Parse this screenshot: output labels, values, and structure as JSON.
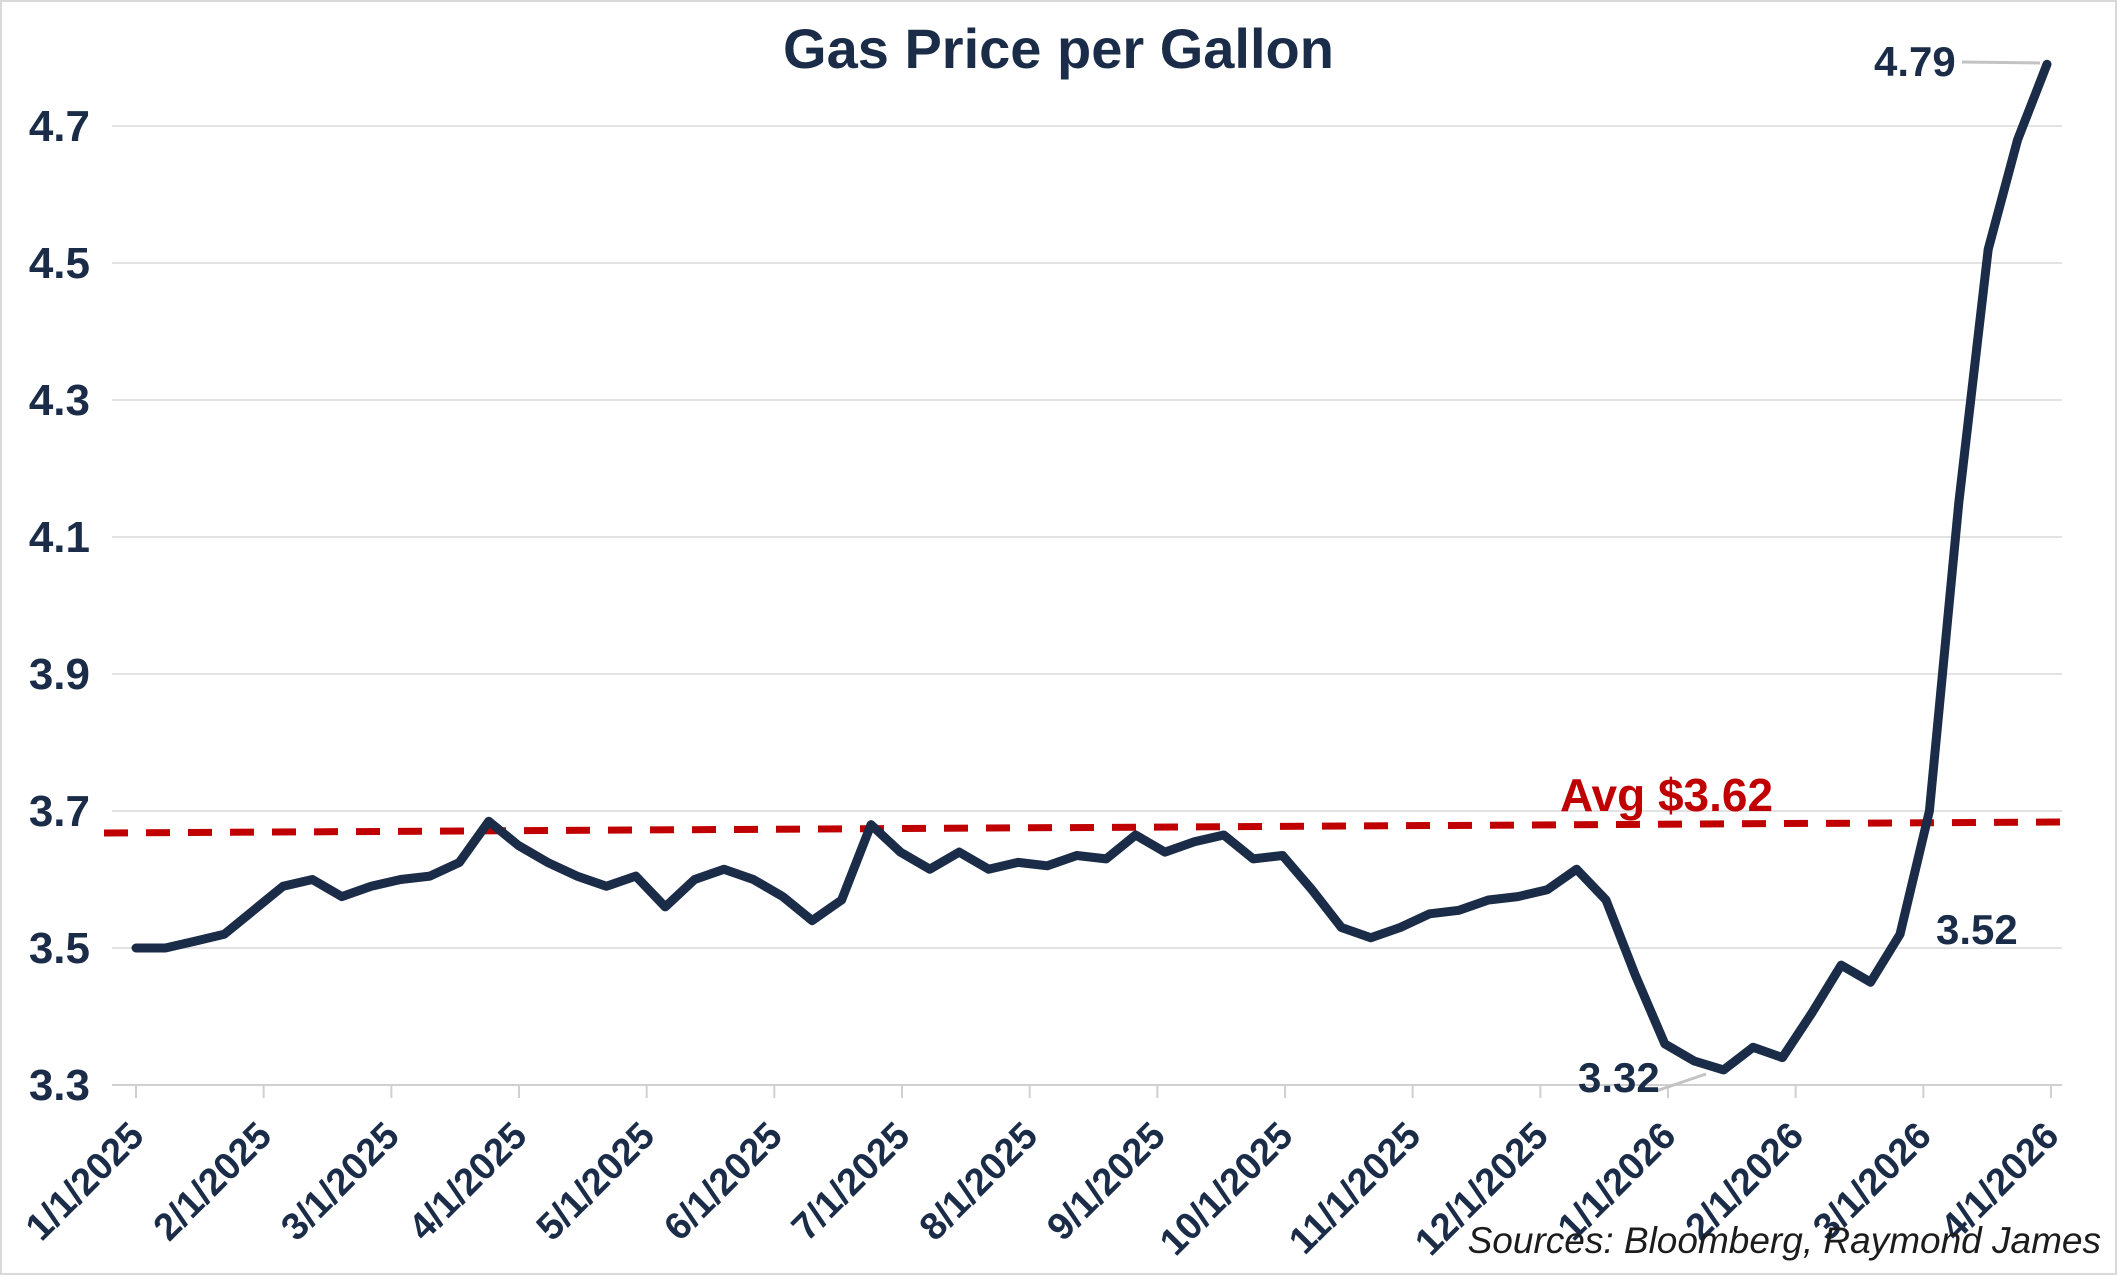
{
  "title": "Gas Price per Gallon",
  "source_note": "Sources: Bloomberg, Raymond James",
  "annotations": {
    "max_value": "4.79",
    "latest_value": "3.52",
    "min_value": "3.32",
    "avg_label": "Avg $3.62"
  },
  "colors": {
    "line": "#1a2c48",
    "navy_text": "#1a2c48",
    "avg_line_red": "#c00000",
    "gridline": "#e2e2e2",
    "axis": "#d0d0d0",
    "leader": "#c3c3c3",
    "source_text": "#1c1c1c"
  },
  "chart_data": {
    "type": "line",
    "title": "Gas Price per Gallon",
    "xlabel": "",
    "ylabel": "",
    "ylim": [
      3.3,
      4.8
    ],
    "yticks": [
      3.3,
      3.5,
      3.7,
      3.9,
      4.1,
      4.3,
      4.5,
      4.7
    ],
    "grid": "horizontal",
    "legend": "none",
    "xtick_labels": [
      "1/1/2025",
      "2/1/2025",
      "3/1/2025",
      "4/1/2025",
      "5/1/2025",
      "6/1/2025",
      "7/1/2025",
      "8/1/2025",
      "9/1/2025",
      "10/1/2025",
      "11/1/2025",
      "12/1/2025",
      "1/1/2026",
      "2/1/2026",
      "3/1/2026",
      "4/1/2026"
    ],
    "x": [
      "1/1/2025",
      "1/8/2025",
      "1/15/2025",
      "1/22/2025",
      "1/29/2025",
      "2/5/2025",
      "2/12/2025",
      "2/19/2025",
      "2/26/2025",
      "3/5/2025",
      "3/12/2025",
      "3/19/2025",
      "3/26/2025",
      "4/2/2025",
      "4/9/2025",
      "4/16/2025",
      "4/23/2025",
      "4/30/2025",
      "5/7/2025",
      "5/14/2025",
      "5/21/2025",
      "5/28/2025",
      "6/4/2025",
      "6/11/2025",
      "6/18/2025",
      "6/25/2025",
      "7/2/2025",
      "7/9/2025",
      "7/16/2025",
      "7/23/2025",
      "7/30/2025",
      "8/6/2025",
      "8/13/2025",
      "8/20/2025",
      "8/27/2025",
      "9/3/2025",
      "9/10/2025",
      "9/17/2025",
      "9/24/2025",
      "10/1/2025",
      "10/8/2025",
      "10/15/2025",
      "10/22/2025",
      "10/29/2025",
      "11/5/2025",
      "11/12/2025",
      "11/19/2025",
      "11/26/2025",
      "12/3/2025",
      "12/10/2025",
      "12/17/2025",
      "12/24/2025",
      "12/31/2025",
      "1/7/2026",
      "1/14/2026",
      "1/21/2026",
      "1/28/2026",
      "2/4/2026",
      "2/11/2026",
      "2/18/2026",
      "2/25/2026",
      "3/4/2026",
      "3/11/2026",
      "3/18/2026",
      "3/25/2026",
      "4/1/2026"
    ],
    "values": [
      3.5,
      3.5,
      3.51,
      3.52,
      3.555,
      3.59,
      3.6,
      3.575,
      3.59,
      3.6,
      3.605,
      3.625,
      3.685,
      3.65,
      3.625,
      3.605,
      3.59,
      3.605,
      3.56,
      3.6,
      3.615,
      3.6,
      3.575,
      3.54,
      3.57,
      3.68,
      3.64,
      3.615,
      3.64,
      3.615,
      3.625,
      3.62,
      3.635,
      3.63,
      3.665,
      3.64,
      3.655,
      3.665,
      3.63,
      3.635,
      3.585,
      3.53,
      3.515,
      3.53,
      3.55,
      3.555,
      3.57,
      3.575,
      3.585,
      3.615,
      3.57,
      3.46,
      3.36,
      3.335,
      3.322,
      3.355,
      3.34,
      3.405,
      3.475,
      3.45,
      3.52,
      3.7,
      4.15,
      4.52,
      4.68,
      4.79
    ],
    "average_line": {
      "label": "Avg $3.62",
      "value": 3.62,
      "style": "dashed",
      "color": "#c00000",
      "position": "just below 3.7 gridline"
    },
    "point_annotations": [
      {
        "x": "4/1/2026",
        "value": 4.79,
        "label": "4.79"
      },
      {
        "x": "1/14/2026",
        "value": 3.32,
        "label": "3.32"
      },
      {
        "x": "2/25/2026",
        "value": 3.52,
        "label": "3.52"
      }
    ],
    "source": "Sources: Bloomberg, Raymond James"
  }
}
